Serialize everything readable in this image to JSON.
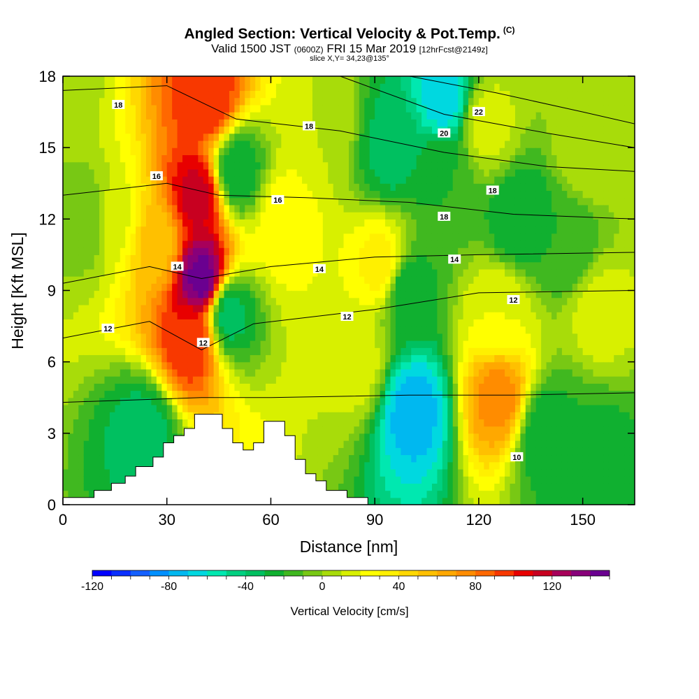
{
  "title": {
    "main": "Angled Section: Vertical Velocity & Pot.Temp.",
    "main_tag": "(C)",
    "valid_a": "Valid 1500 JST",
    "valid_b": "(0600Z)",
    "valid_c": "FRI 15 Mar 2019",
    "valid_d": "[12hrFcst@2149z]",
    "slice": "slice X,Y= 34,23@135°"
  },
  "chart_data": {
    "type": "heatmap",
    "xlabel": "Distance [nm]",
    "ylabel": "Height [Kft MSL]",
    "xlim": [
      0,
      165
    ],
    "ylim": [
      0,
      18
    ],
    "x_ticks": [
      0,
      30,
      60,
      90,
      120,
      150
    ],
    "y_ticks": [
      0,
      3,
      6,
      9,
      12,
      15,
      18
    ],
    "colorbar": {
      "title": "Vertical Velocity [cm/s]",
      "range": [
        -120,
        150
      ],
      "step": 10,
      "tick_values": [
        -120,
        -80,
        -40,
        0,
        40,
        80,
        120
      ],
      "tick_labels": [
        "-120",
        "-80",
        "-40",
        "0",
        "40",
        "80",
        "120"
      ],
      "colors": [
        "#0000ff",
        "#0a2fff",
        "#1460ff",
        "#0090ff",
        "#00b8f0",
        "#00d8e0",
        "#00e8b0",
        "#00d080",
        "#00c060",
        "#10b030",
        "#40b820",
        "#78c814",
        "#a8dc0a",
        "#d8f000",
        "#ffff00",
        "#fff000",
        "#ffd800",
        "#ffc000",
        "#ffa800",
        "#ff8c00",
        "#ff6800",
        "#f83800",
        "#e80000",
        "#c80020",
        "#a8005a",
        "#88007a",
        "#6a0090"
      ]
    },
    "velocity_features": [
      {
        "x": 0,
        "y": 18,
        "v": 5
      },
      {
        "x": 40,
        "y": 9.5,
        "v": 145
      },
      {
        "x": 39,
        "y": 13,
        "v": 115
      },
      {
        "x": 37,
        "y": 7,
        "v": 100
      },
      {
        "x": 42,
        "y": 17,
        "v": 100
      },
      {
        "x": 27,
        "y": 11,
        "v": 55
      },
      {
        "x": 48,
        "y": 8,
        "v": -35
      },
      {
        "x": 50,
        "y": 14,
        "v": -30
      },
      {
        "x": 23,
        "y": 3,
        "v": -35
      },
      {
        "x": 15,
        "y": 12,
        "v": 18
      },
      {
        "x": 8,
        "y": 12,
        "v": -10
      },
      {
        "x": 64,
        "y": 12,
        "v": 25
      },
      {
        "x": 75,
        "y": 16,
        "v": 10
      },
      {
        "x": 92,
        "y": 10,
        "v": 35
      },
      {
        "x": 85,
        "y": 6,
        "v": 15
      },
      {
        "x": 101,
        "y": 4,
        "v": -75
      },
      {
        "x": 99,
        "y": 9,
        "v": -30
      },
      {
        "x": 95,
        "y": 15,
        "v": -35
      },
      {
        "x": 110,
        "y": 17,
        "v": -65
      },
      {
        "x": 110,
        "y": 14,
        "v": -20
      },
      {
        "x": 126,
        "y": 4.5,
        "v": 75
      },
      {
        "x": 126,
        "y": 8,
        "v": 20
      },
      {
        "x": 122,
        "y": 16,
        "v": 15
      },
      {
        "x": 132,
        "y": 12,
        "v": -30
      },
      {
        "x": 139,
        "y": 3,
        "v": -30
      },
      {
        "x": 148,
        "y": 2.5,
        "v": -20
      },
      {
        "x": 155,
        "y": 2,
        "v": -25
      },
      {
        "x": 145,
        "y": 11,
        "v": -20
      },
      {
        "x": 155,
        "y": 8,
        "v": 15
      },
      {
        "x": 152,
        "y": 15,
        "v": 10
      }
    ],
    "isentropes": [
      {
        "label": "10",
        "points": [
          [
            0,
            4.3
          ],
          [
            40,
            4.5
          ],
          [
            60,
            4.5
          ],
          [
            100,
            4.6
          ],
          [
            130,
            4.6
          ],
          [
            165,
            4.7
          ]
        ]
      },
      {
        "label": "12",
        "points": [
          [
            0,
            7
          ],
          [
            25,
            7.7
          ],
          [
            40,
            6.5
          ],
          [
            55,
            7.6
          ],
          [
            90,
            8.2
          ],
          [
            120,
            8.9
          ],
          [
            165,
            9
          ]
        ]
      },
      {
        "label": "14",
        "points": [
          [
            0,
            9.3
          ],
          [
            25,
            10
          ],
          [
            40,
            9.5
          ],
          [
            60,
            10
          ],
          [
            90,
            10.4
          ],
          [
            120,
            10.5
          ],
          [
            165,
            10.6
          ]
        ]
      },
      {
        "label": "16",
        "points": [
          [
            0,
            13
          ],
          [
            30,
            13.5
          ],
          [
            45,
            13
          ],
          [
            70,
            12.9
          ],
          [
            100,
            12.7
          ],
          [
            130,
            12.2
          ],
          [
            165,
            12
          ]
        ]
      },
      {
        "label": "18",
        "points": [
          [
            0,
            17.4
          ],
          [
            30,
            17.6
          ],
          [
            50,
            16.2
          ],
          [
            80,
            15.7
          ],
          [
            110,
            14.8
          ],
          [
            140,
            14.2
          ],
          [
            165,
            14
          ]
        ]
      },
      {
        "label": "20",
        "points": [
          [
            80,
            18
          ],
          [
            110,
            16.4
          ],
          [
            140,
            15.6
          ],
          [
            165,
            15
          ]
        ]
      },
      {
        "label": "22",
        "points": [
          [
            100,
            18
          ],
          [
            125,
            17.3
          ],
          [
            150,
            16.5
          ],
          [
            165,
            16
          ]
        ]
      }
    ],
    "contour_labels": [
      {
        "text": "18",
        "x": 16,
        "y": 16.8
      },
      {
        "text": "18",
        "x": 71,
        "y": 15.9
      },
      {
        "text": "16",
        "x": 27,
        "y": 13.8
      },
      {
        "text": "16",
        "x": 62,
        "y": 12.8
      },
      {
        "text": "14",
        "x": 33,
        "y": 10
      },
      {
        "text": "14",
        "x": 74,
        "y": 9.9
      },
      {
        "text": "12",
        "x": 13,
        "y": 7.4
      },
      {
        "text": "12",
        "x": 82,
        "y": 7.9
      },
      {
        "text": "12",
        "x": 40.5,
        "y": 6.8
      },
      {
        "text": "20",
        "x": 110,
        "y": 15.6
      },
      {
        "text": "22",
        "x": 120,
        "y": 16.5
      },
      {
        "text": "18",
        "x": 124,
        "y": 13.2
      },
      {
        "text": "18",
        "x": 110,
        "y": 12.1
      },
      {
        "text": "14",
        "x": 113,
        "y": 10.3
      },
      {
        "text": "12",
        "x": 130,
        "y": 8.6
      },
      {
        "text": "10",
        "x": 131,
        "y": 2
      }
    ],
    "terrain": [
      [
        0,
        0.3
      ],
      [
        9,
        0.3
      ],
      [
        9,
        0.6
      ],
      [
        14,
        0.6
      ],
      [
        14,
        0.9
      ],
      [
        18,
        0.9
      ],
      [
        18,
        1.2
      ],
      [
        21,
        1.2
      ],
      [
        21,
        1.6
      ],
      [
        26,
        1.6
      ],
      [
        26,
        2
      ],
      [
        29,
        2
      ],
      [
        29,
        2.6
      ],
      [
        32,
        2.6
      ],
      [
        32,
        2.9
      ],
      [
        35,
        2.9
      ],
      [
        35,
        3.2
      ],
      [
        38,
        3.2
      ],
      [
        38,
        3.8
      ],
      [
        46,
        3.8
      ],
      [
        46,
        3.2
      ],
      [
        49,
        3.2
      ],
      [
        49,
        2.6
      ],
      [
        52,
        2.6
      ],
      [
        52,
        2.3
      ],
      [
        55,
        2.3
      ],
      [
        55,
        2.6
      ],
      [
        58,
        2.6
      ],
      [
        58,
        3.5
      ],
      [
        64,
        3.5
      ],
      [
        64,
        2.9
      ],
      [
        67,
        2.9
      ],
      [
        67,
        1.9
      ],
      [
        70,
        1.9
      ],
      [
        70,
        1.3
      ],
      [
        73,
        1.3
      ],
      [
        73,
        1
      ],
      [
        76,
        1
      ],
      [
        76,
        0.6
      ],
      [
        82,
        0.6
      ],
      [
        82,
        0.3
      ],
      [
        88,
        0.3
      ],
      [
        88,
        0
      ],
      [
        165,
        0
      ]
    ]
  }
}
